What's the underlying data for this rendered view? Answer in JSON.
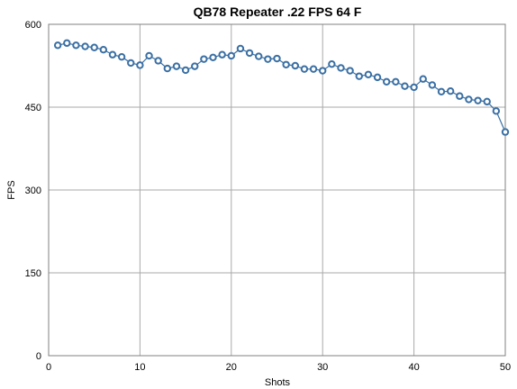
{
  "chart_data": {
    "type": "line",
    "title": "QB78 Repeater .22 FPS 64 F",
    "xlabel": "Shots",
    "ylabel": "FPS",
    "xlim": [
      0,
      50
    ],
    "ylim": [
      0,
      600
    ],
    "xticks": [
      0,
      10,
      20,
      30,
      40,
      50
    ],
    "yticks": [
      0,
      150,
      300,
      450,
      600
    ],
    "grid": true,
    "legend": "none",
    "series": [
      {
        "color": "#3a6fa3",
        "x": [
          1,
          2,
          3,
          4,
          5,
          6,
          7,
          8,
          9,
          10,
          11,
          12,
          13,
          14,
          15,
          16,
          17,
          18,
          19,
          20,
          21,
          22,
          23,
          24,
          25,
          26,
          27,
          28,
          29,
          30,
          31,
          32,
          33,
          34,
          35,
          36,
          37,
          38,
          39,
          40,
          41,
          42,
          43,
          44,
          45,
          46,
          47,
          48,
          49,
          50
        ],
        "y": [
          562,
          566,
          562,
          560,
          558,
          554,
          545,
          541,
          530,
          526,
          543,
          534,
          520,
          524,
          517,
          524,
          537,
          540,
          545,
          543,
          556,
          548,
          542,
          537,
          538,
          527,
          525,
          519,
          519,
          516,
          528,
          521,
          516,
          506,
          509,
          504,
          496,
          496,
          488,
          486,
          501,
          490,
          478,
          479,
          470,
          464,
          462,
          460,
          443,
          405
        ]
      }
    ]
  }
}
